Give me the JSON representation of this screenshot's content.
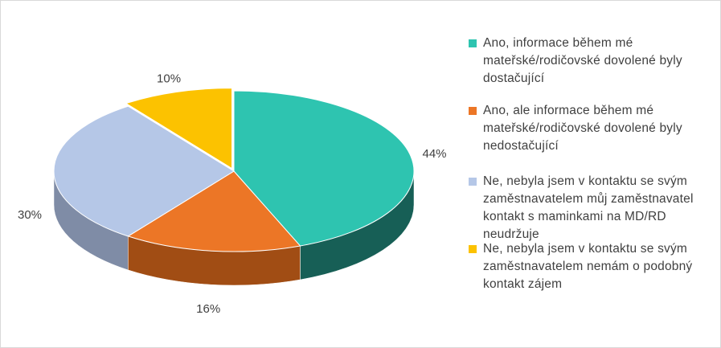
{
  "chart_data": {
    "type": "pie",
    "three_d": true,
    "slices": [
      {
        "label": "Ano, informace během mé mateřské/rodičovské dovolené byly dostačující",
        "value": 44,
        "value_label": "44%",
        "color": "#2ec4b0",
        "side_color": "#175f56"
      },
      {
        "label": "Ano, ale informace během mé mateřské/rodičovské dovolené byly nedostačující",
        "value": 16,
        "value_label": "16%",
        "color": "#ec7626",
        "side_color": "#a14d14"
      },
      {
        "label": "Ne, nebyla jsem v kontaktu se svým zaměstnavatelem  můj zaměstnavatel kontakt s maminkami na MD/RD neudržuje",
        "value": 30,
        "value_label": "30%",
        "color": "#b5c7e7",
        "side_color": "#7f8ca6"
      },
      {
        "label": "Ne, nebyla jsem v kontaktu se svým zaměstnavatelem  nemám o podobný kontakt zájem",
        "value": 10,
        "value_label": "10%",
        "color": "#fcc200",
        "side_color": "#a07c00"
      }
    ],
    "legend_position": "right"
  }
}
